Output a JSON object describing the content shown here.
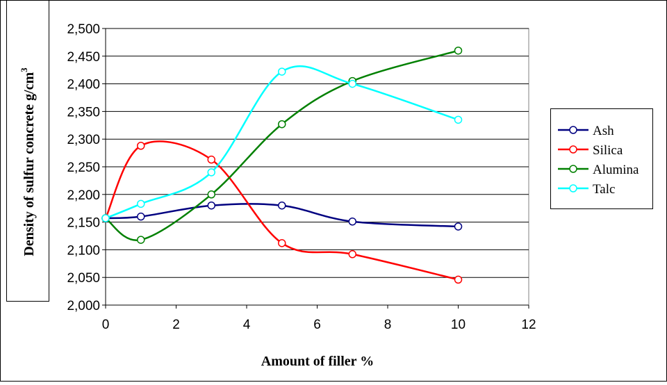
{
  "chart_data": {
    "type": "line",
    "xlabel": "Amount of filler %",
    "ylabel": "Density of sulfur concrete g/cm",
    "ylabel_superscript": "3",
    "xlim": [
      0,
      12
    ],
    "ylim": [
      2.0,
      2.5
    ],
    "x_ticks": [
      "0",
      "2",
      "4",
      "6",
      "8",
      "10",
      "12"
    ],
    "y_ticks": [
      "2,000",
      "2,050",
      "2,100",
      "2,150",
      "2,200",
      "2,250",
      "2,300",
      "2,350",
      "2,400",
      "2,450",
      "2,500"
    ],
    "grid": true,
    "legend_position": "right",
    "series": [
      {
        "name": "Ash",
        "color": "#000080",
        "x": [
          0,
          1,
          3,
          5,
          7,
          10
        ],
        "values": [
          2.157,
          2.16,
          2.18,
          2.18,
          2.151,
          2.142
        ]
      },
      {
        "name": "Silica",
        "color": "#ff0000",
        "x": [
          0,
          1,
          3,
          5,
          7,
          10
        ],
        "values": [
          2.157,
          2.288,
          2.263,
          2.112,
          2.092,
          2.046
        ]
      },
      {
        "name": "Alumina",
        "color": "#008000",
        "x": [
          0,
          1,
          3,
          5,
          7,
          10
        ],
        "values": [
          2.157,
          2.118,
          2.2,
          2.327,
          2.405,
          2.46
        ]
      },
      {
        "name": "Talc",
        "color": "#00ffff",
        "x": [
          0,
          1,
          3,
          5,
          7,
          10
        ],
        "values": [
          2.157,
          2.183,
          2.24,
          2.422,
          2.4,
          2.335
        ]
      }
    ]
  }
}
